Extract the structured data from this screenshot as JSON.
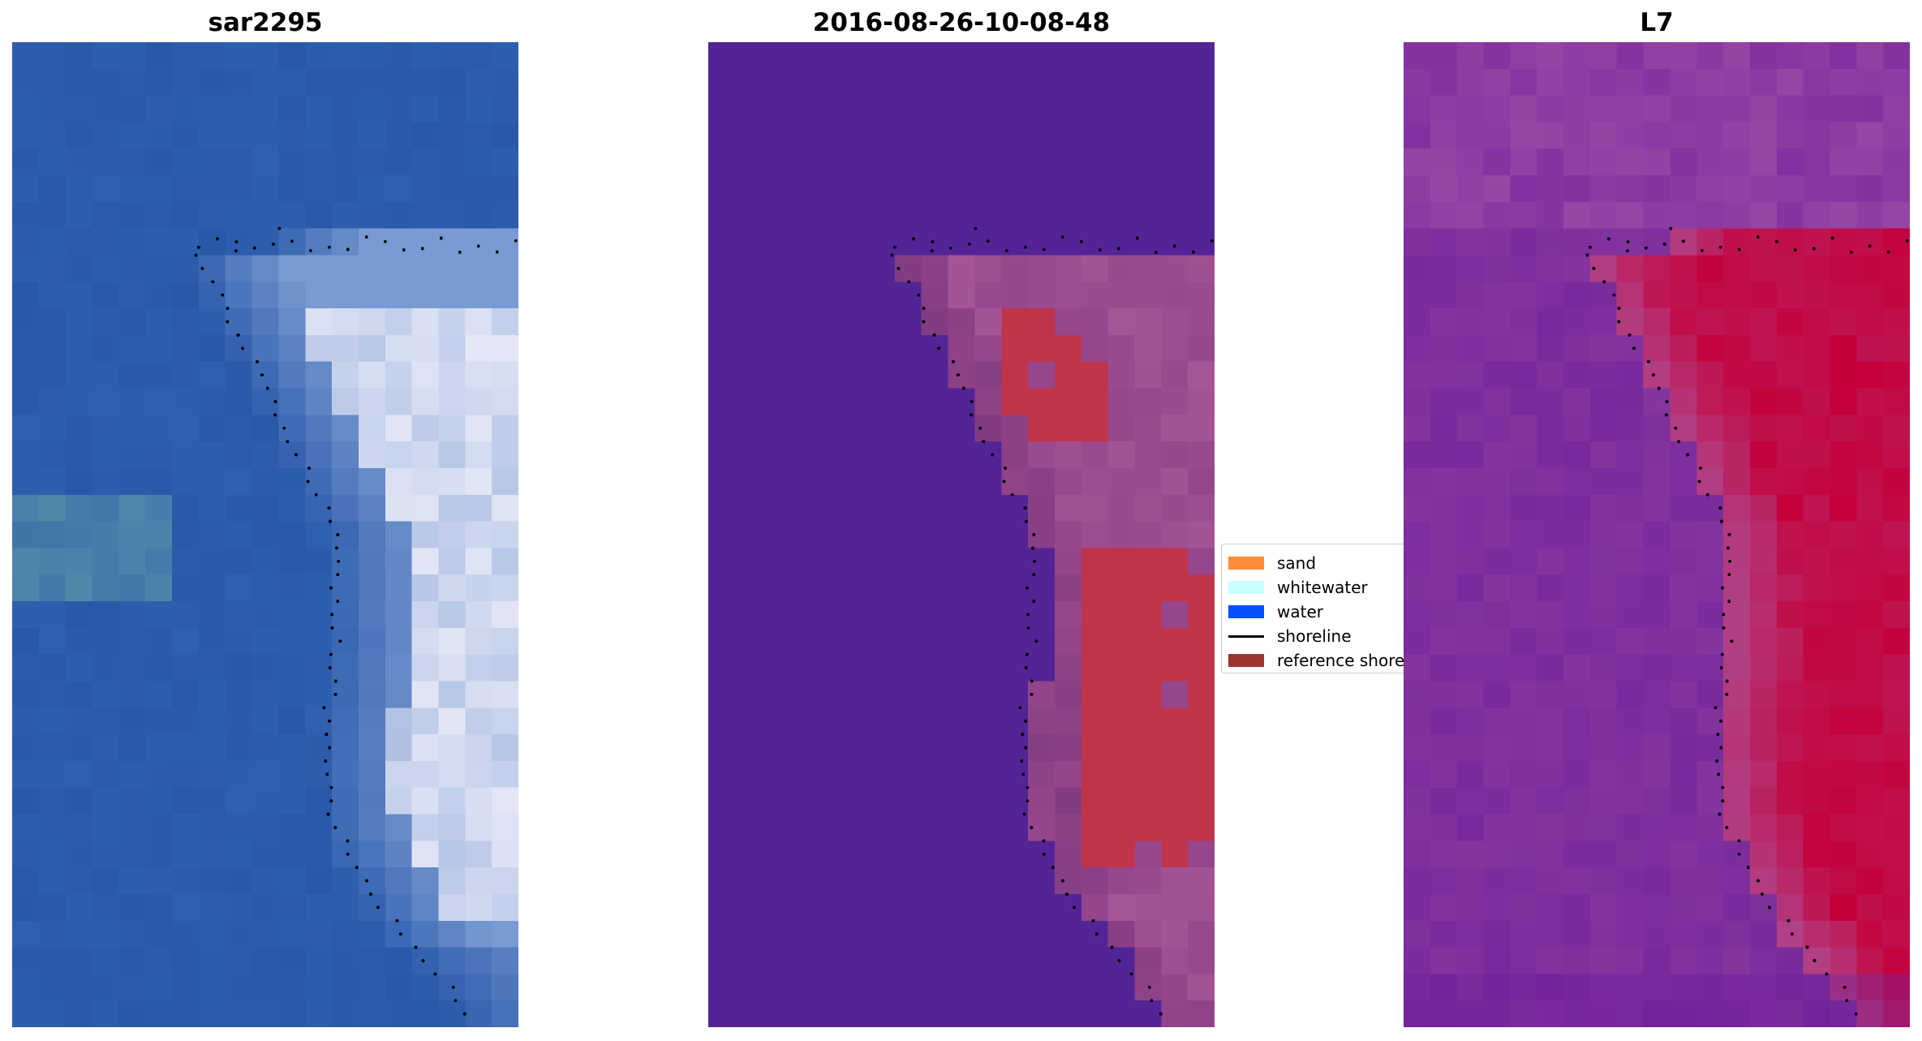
{
  "panels": [
    {
      "title": "sar2295",
      "colormap": "satellite-rgb"
    },
    {
      "title": "2016-08-26-10-08-48",
      "colormap": "classification"
    },
    {
      "title": "L7",
      "colormap": "mndwi"
    }
  ],
  "legend": {
    "items": [
      {
        "label": "sand",
        "type": "patch",
        "color": "#ff8c3a"
      },
      {
        "label": "whitewater",
        "type": "patch",
        "color": "#c8ffff"
      },
      {
        "label": "water",
        "type": "patch",
        "color": "#0050ff"
      },
      {
        "label": "shoreline",
        "type": "line",
        "color": "#000000"
      },
      {
        "label": "reference shoreline",
        "type": "patch",
        "color": "#9c3432"
      }
    ]
  },
  "colors": {
    "water_blue": "#2a58a8",
    "classified_water": "#532495",
    "classified_sand": "#c0344a",
    "index_low": "#7a2a9c",
    "index_high": "#c4003a"
  }
}
